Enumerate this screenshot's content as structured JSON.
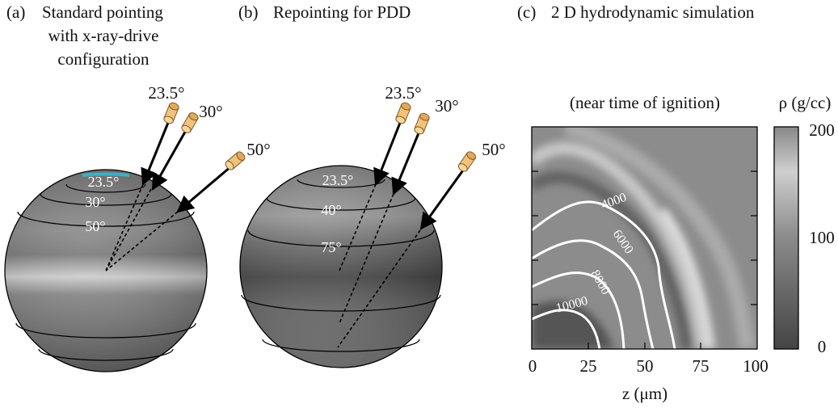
{
  "panels": [
    {
      "label": "(a)",
      "title_lines": [
        "Standard pointing",
        "with x-ray-drive",
        "configuration"
      ],
      "beam_labels": [
        "23.5°",
        "30°",
        "50°"
      ],
      "ring_labels": [
        "23.5°",
        "30°",
        "50°"
      ]
    },
    {
      "label": "(b)",
      "title_lines": [
        "Repointing for PDD"
      ],
      "beam_labels": [
        "23.5°",
        "30°",
        "50°"
      ],
      "ring_labels": [
        "23.5°",
        "40°",
        "75°"
      ]
    },
    {
      "label": "(c)",
      "title_lines": [
        "2 D hydrodynamic simulation"
      ],
      "subtitle": "(near time of ignition)",
      "colorbar_label": "ρ (g/cc)",
      "colorbar_ticks": [
        "200",
        "100",
        "0"
      ],
      "x_ticks": [
        "0",
        "25",
        "50",
        "75",
        "100"
      ],
      "x_label": "z (μm)",
      "contour_labels": [
        "4000",
        "6000",
        "8000",
        "10000"
      ]
    }
  ]
}
